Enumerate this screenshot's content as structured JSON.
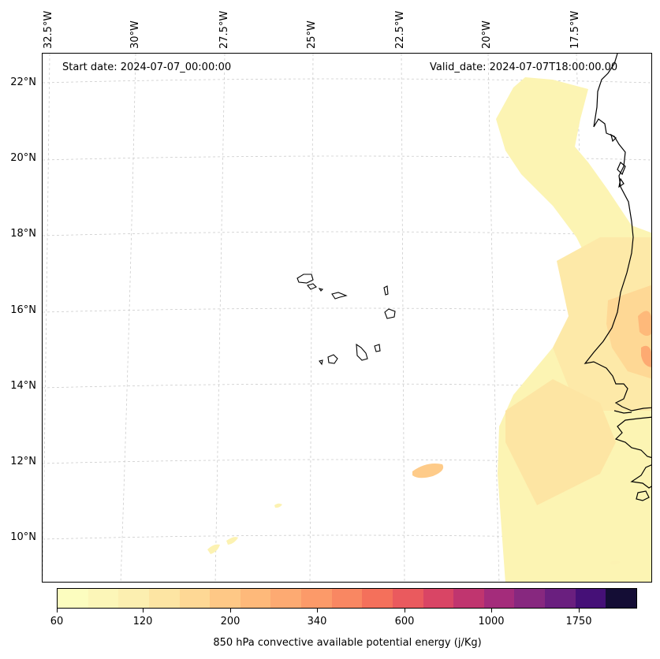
{
  "annotations": {
    "start_date": "Start date: 2024-07-07_00:00:00",
    "valid_date": "Valid_date: 2024-07-07T18:00:00.00"
  },
  "longitude_labels": [
    "32.5°W",
    "30°W",
    "27.5°W",
    "25°W",
    "22.5°W",
    "20°W",
    "17.5°W"
  ],
  "latitude_labels": [
    "22°N",
    "20°N",
    "18°N",
    "16°N",
    "14°N",
    "12°N",
    "10°N"
  ],
  "colorbar": {
    "title": "850 hPa convective available potential energy (j/Kg)",
    "tick_labels": [
      "60",
      "120",
      "200",
      "340",
      "600",
      "1000",
      "1750"
    ],
    "colors": [
      "#fcfdbf",
      "#fcf6b8",
      "#fcefb0",
      "#fde5a3",
      "#fed895",
      "#fec886",
      "#feb97a",
      "#fdaa72",
      "#fc9a69",
      "#f98762",
      "#f4705b",
      "#ea5a5e",
      "#d94565",
      "#c0356f",
      "#a42c7b",
      "#87287f",
      "#6a1f7f",
      "#451077",
      "#140d35"
    ]
  },
  "map": {
    "extent_lon": [
      -32.6,
      -15.1
    ],
    "extent_lat": [
      8.9,
      22.8
    ],
    "graticule": "dashed light gray",
    "coastline_color": "#000000"
  }
}
